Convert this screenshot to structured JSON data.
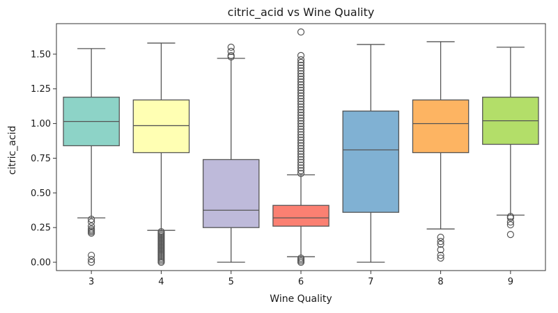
{
  "chart_data": {
    "type": "box",
    "title": "citric_acid vs Wine Quality",
    "xlabel": "Wine Quality",
    "ylabel": "citric_acid",
    "ylim": [
      -0.06,
      1.72
    ],
    "yticks": [
      "0.00",
      "0.25",
      "0.50",
      "0.75",
      "1.00",
      "1.25",
      "1.50"
    ],
    "grid": false,
    "legend": "none",
    "boxes": [
      {
        "category": "3",
        "color": "#8dd3c7",
        "q1": 0.84,
        "median": 1.015,
        "q3": 1.19,
        "whisker_low": 0.32,
        "whisker_high": 1.54,
        "outliers": [
          0.31,
          0.29,
          0.26,
          0.24,
          0.23,
          0.22,
          0.21,
          0.05,
          0.02,
          0.0
        ]
      },
      {
        "category": "4",
        "color": "#ffffb3",
        "q1": 0.79,
        "median": 0.985,
        "q3": 1.17,
        "whisker_low": 0.23,
        "whisker_high": 1.58,
        "outliers": [
          0.22,
          0.21,
          0.2,
          0.19,
          0.18,
          0.17,
          0.16,
          0.15,
          0.14,
          0.13,
          0.12,
          0.11,
          0.1,
          0.09,
          0.08,
          0.07,
          0.06,
          0.05,
          0.04,
          0.03,
          0.02,
          0.01,
          0.0
        ]
      },
      {
        "category": "5",
        "color": "#bebada",
        "q1": 0.25,
        "median": 0.375,
        "q3": 0.74,
        "whisker_low": 0.0,
        "whisker_high": 1.47,
        "outliers": [
          1.48,
          1.49,
          1.52,
          1.55
        ]
      },
      {
        "category": "6",
        "color": "#fb8072",
        "q1": 0.26,
        "median": 0.32,
        "q3": 0.41,
        "whisker_low": 0.04,
        "whisker_high": 0.63,
        "outliers": [
          0.0,
          0.01,
          0.02,
          0.03,
          0.64,
          0.66,
          0.68,
          0.7,
          0.72,
          0.74,
          0.76,
          0.78,
          0.8,
          0.82,
          0.84,
          0.86,
          0.88,
          0.9,
          0.92,
          0.94,
          0.96,
          0.98,
          1.0,
          1.02,
          1.04,
          1.06,
          1.08,
          1.1,
          1.12,
          1.14,
          1.16,
          1.18,
          1.2,
          1.22,
          1.24,
          1.26,
          1.28,
          1.3,
          1.32,
          1.34,
          1.36,
          1.38,
          1.4,
          1.42,
          1.44,
          1.46,
          1.49,
          1.66
        ]
      },
      {
        "category": "7",
        "color": "#80b1d3",
        "q1": 0.36,
        "median": 0.81,
        "q3": 1.09,
        "whisker_low": 0.0,
        "whisker_high": 1.57,
        "outliers": []
      },
      {
        "category": "8",
        "color": "#fdb462",
        "q1": 0.79,
        "median": 1.0,
        "q3": 1.17,
        "whisker_low": 0.24,
        "whisker_high": 1.59,
        "outliers": [
          0.18,
          0.15,
          0.13,
          0.09,
          0.05,
          0.03
        ]
      },
      {
        "category": "9",
        "color": "#b3de69",
        "q1": 0.85,
        "median": 1.02,
        "q3": 1.19,
        "whisker_low": 0.34,
        "whisker_high": 1.55,
        "outliers": [
          0.33,
          0.32,
          0.29,
          0.27,
          0.2
        ]
      }
    ]
  }
}
